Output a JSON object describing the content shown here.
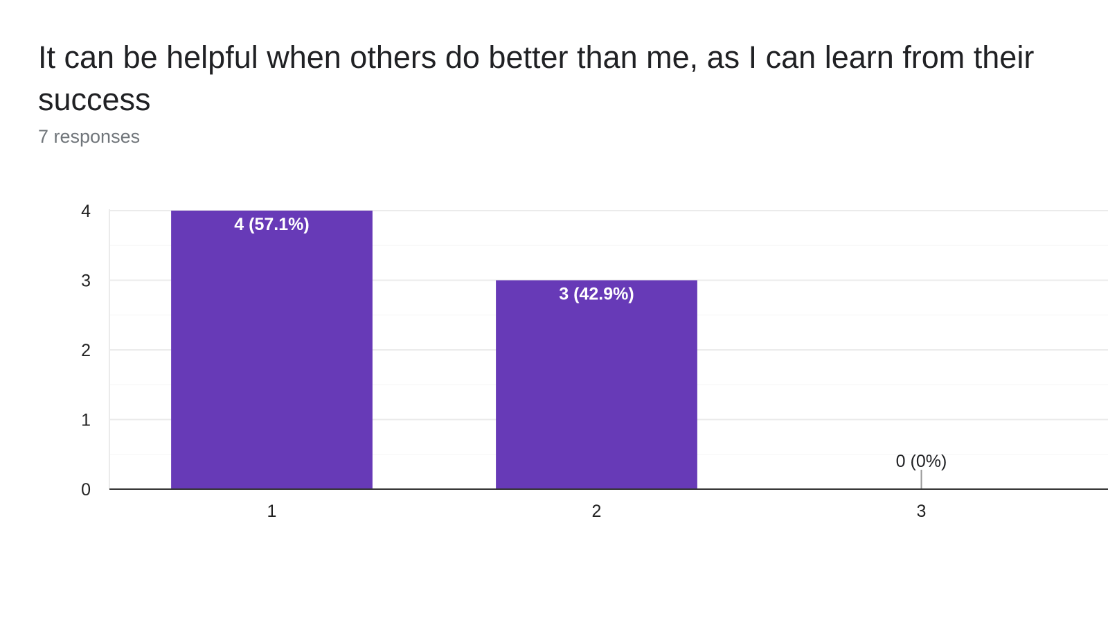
{
  "question": {
    "title": "It can be helpful when others do better than me, as I can learn from their success",
    "responses": "7 responses"
  },
  "colors": {
    "bar": "#673ab7",
    "bar_label": "#ffffff",
    "outside_label": "#202124",
    "gridline": "#ebebeb",
    "minor_gridline": "#f5f5f5",
    "axis": "#333333",
    "zero_marker": "#999999"
  },
  "chart_data": {
    "type": "bar",
    "categories": [
      "1",
      "2",
      "3"
    ],
    "values": [
      4,
      3,
      0
    ],
    "data_labels": [
      "4 (57.1%)",
      "3 (42.9%)",
      "0 (0%)"
    ],
    "y_ticks": [
      "0",
      "1",
      "2",
      "3",
      "4"
    ],
    "ylim": [
      0,
      4
    ],
    "grid": true,
    "title": "",
    "xlabel": "",
    "ylabel": ""
  }
}
